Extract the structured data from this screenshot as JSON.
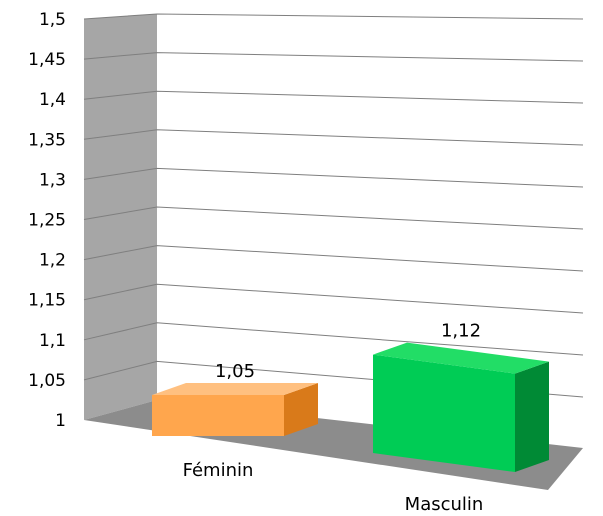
{
  "chart_data": {
    "type": "bar",
    "categories": [
      "Féminin",
      "Masculin"
    ],
    "values": [
      1.05,
      1.12
    ],
    "data_labels": [
      "1,05",
      "1,12"
    ],
    "ylim": [
      1,
      1.5
    ],
    "yticks": [
      1,
      1.05,
      1.1,
      1.15,
      1.2,
      1.25,
      1.3,
      1.35,
      1.4,
      1.45,
      1.5
    ],
    "ytick_labels": [
      "1",
      "1,05",
      "1,1",
      "1,15",
      "1,2",
      "1,25",
      "1,3",
      "1,35",
      "1,4",
      "1,45",
      "1,5"
    ],
    "title": "",
    "xlabel": "",
    "ylabel": "",
    "grid": true,
    "legend": "none",
    "style": "3d",
    "colors": {
      "bar_1_front": "#FFA64D",
      "bar_1_top": "#FFC080",
      "bar_1_side": "#D97A1A",
      "bar_2_front": "#00CC55",
      "bar_2_top": "#22DD66",
      "bar_2_side": "#008A35",
      "left_wall": "#A6A6A6",
      "floor": "#8C8C8C",
      "gridline": "#7F7F7F"
    }
  }
}
